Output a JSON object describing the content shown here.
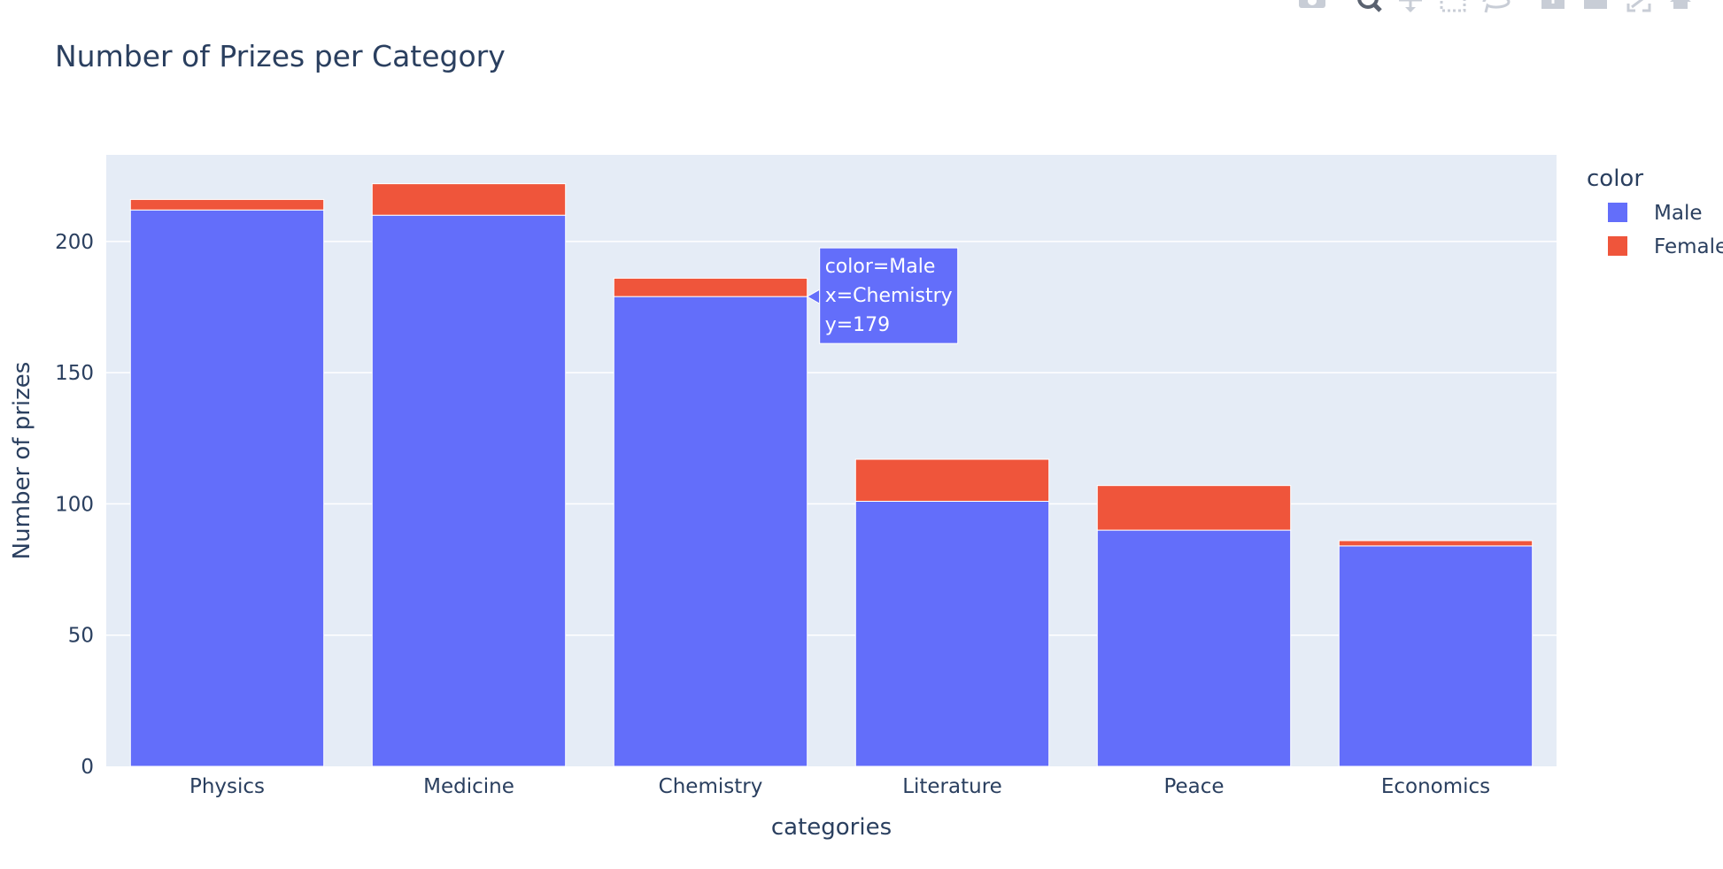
{
  "chart_data": {
    "type": "bar",
    "barmode": "stack",
    "title": "Number of Prizes per Category",
    "xlabel": "categories",
    "ylabel": "Number of prizes",
    "categories": [
      "Physics",
      "Medicine",
      "Chemistry",
      "Literature",
      "Peace",
      "Economics"
    ],
    "series": [
      {
        "name": "Male",
        "color": "#636efa",
        "values": [
          212,
          210,
          179,
          101,
          90,
          84
        ]
      },
      {
        "name": "Female",
        "color": "#ef553b",
        "values": [
          4,
          12,
          7,
          16,
          17,
          2
        ]
      }
    ],
    "ylim": [
      0,
      233
    ],
    "yticks": [
      0,
      50,
      100,
      150,
      200
    ],
    "grid": true,
    "legend": {
      "title": "color",
      "placement": "right"
    },
    "tooltip": {
      "series_index": 0,
      "category_index": 2,
      "lines": [
        "color=Male",
        "x=Chemistry",
        "y=179"
      ]
    }
  },
  "colors": {
    "plot_background": "#e5ecf6",
    "gridline": "#ffffff",
    "text": "#2a3f5f",
    "modebar_icon": "#c8cdd6"
  },
  "modebar": {
    "icons": [
      "camera-icon",
      "zoom-icon",
      "pan-icon",
      "box-select-icon",
      "lasso-select-icon",
      "zoom-in-icon",
      "zoom-out-icon",
      "autoscale-icon",
      "reset-axes-icon"
    ]
  }
}
